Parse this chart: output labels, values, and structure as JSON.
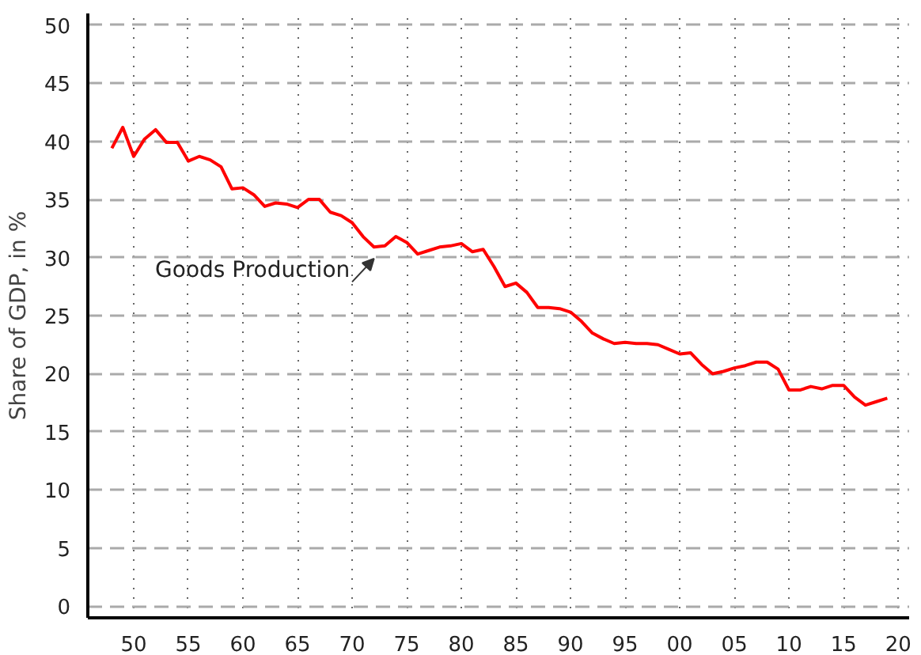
{
  "chart_data": {
    "type": "line",
    "ylabel": "Share of GDP, in %",
    "x": [
      1948,
      1949,
      1950,
      1951,
      1952,
      1953,
      1954,
      1955,
      1956,
      1957,
      1958,
      1959,
      1960,
      1961,
      1962,
      1963,
      1964,
      1965,
      1966,
      1967,
      1968,
      1969,
      1970,
      1971,
      1972,
      1973,
      1974,
      1975,
      1976,
      1977,
      1978,
      1979,
      1980,
      1981,
      1982,
      1983,
      1984,
      1985,
      1986,
      1987,
      1988,
      1989,
      1990,
      1991,
      1992,
      1993,
      1994,
      1995,
      1996,
      1997,
      1998,
      1999,
      2000,
      2001,
      2002,
      2003,
      2004,
      2005,
      2006,
      2007,
      2008,
      2009,
      2010,
      2011,
      2012,
      2013,
      2014,
      2015,
      2016,
      2017,
      2018,
      2019
    ],
    "series": [
      {
        "color": "#ff0000",
        "values": [
          39.4,
          41.2,
          38.7,
          40.2,
          41.0,
          39.9,
          39.9,
          38.3,
          38.7,
          38.4,
          37.8,
          35.9,
          36.0,
          35.4,
          34.4,
          34.7,
          34.6,
          34.3,
          35.0,
          35.0,
          33.9,
          33.6,
          33.0,
          31.8,
          30.9,
          31.0,
          31.8,
          31.3,
          30.3,
          30.6,
          30.9,
          31.0,
          31.2,
          30.5,
          30.7,
          29.2,
          27.5,
          27.8,
          27.0,
          25.7,
          25.7,
          25.6,
          25.3,
          24.5,
          23.5,
          23.0,
          22.6,
          22.7,
          22.6,
          22.6,
          22.5,
          22.1,
          21.7,
          21.8,
          20.8,
          20.0,
          20.2,
          20.5,
          20.7,
          21.0,
          21.0,
          20.4,
          18.6,
          18.6,
          18.9,
          18.7,
          19.0,
          19.0,
          18.0,
          17.3,
          17.6,
          17.9
        ]
      }
    ],
    "xlim": [
      1945.8,
      2021
    ],
    "ylim": [
      -1,
      51
    ],
    "xticks": [
      {
        "value": 1950,
        "label": "50"
      },
      {
        "value": 1955,
        "label": "55"
      },
      {
        "value": 1960,
        "label": "60"
      },
      {
        "value": 1965,
        "label": "65"
      },
      {
        "value": 1970,
        "label": "70"
      },
      {
        "value": 1975,
        "label": "75"
      },
      {
        "value": 1980,
        "label": "80"
      },
      {
        "value": 1985,
        "label": "85"
      },
      {
        "value": 1990,
        "label": "90"
      },
      {
        "value": 1995,
        "label": "95"
      },
      {
        "value": 2000,
        "label": "00"
      },
      {
        "value": 2005,
        "label": "05"
      },
      {
        "value": 2010,
        "label": "10"
      },
      {
        "value": 2015,
        "label": "15"
      },
      {
        "value": 2020,
        "label": "20"
      }
    ],
    "yticks": [
      0,
      5,
      10,
      15,
      20,
      25,
      30,
      35,
      40,
      45,
      50
    ],
    "annotations": [
      {
        "text": "Goods Production",
        "x": 1972,
        "y": 30.9
      }
    ],
    "grid": true,
    "marker": "none",
    "line_style": "solid"
  }
}
